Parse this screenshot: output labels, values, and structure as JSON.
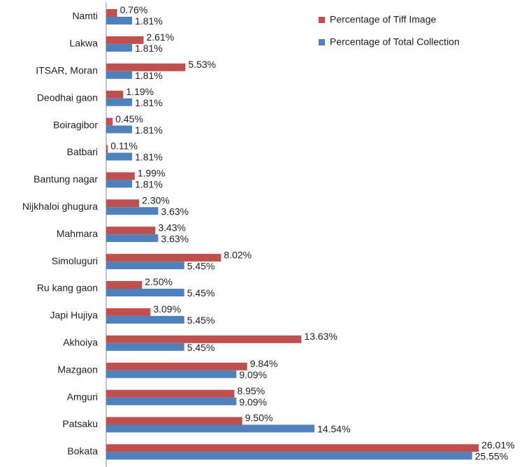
{
  "chart_data": {
    "type": "bar",
    "orientation": "horizontal",
    "categories": [
      "Namti",
      "Lakwa",
      "ITSAR, Moran",
      "Deodhai gaon",
      "Boiragibor",
      "Batbari",
      "Bantung nagar",
      "Nijkhaloi ghugura",
      "Mahmara",
      "Simoluguri",
      "Ru kang gaon",
      "Japi Hujiya",
      "Akhoiya",
      "Mazgaon",
      "Amguri",
      "Patsaku",
      "Bokata"
    ],
    "series": [
      {
        "name": "Percentage of Tiff Image",
        "color": "#c0504d",
        "values": [
          0.76,
          2.61,
          5.53,
          1.19,
          0.45,
          0.11,
          1.99,
          2.3,
          3.43,
          8.02,
          2.5,
          3.09,
          13.63,
          9.84,
          8.95,
          9.5,
          26.01
        ],
        "value_labels": [
          "0.76%",
          "2.61%",
          "5.53%",
          "1.19%",
          "0.45%",
          "0.11%",
          "1.99%",
          "2.30%",
          "3.43%",
          "8.02%",
          "2.50%",
          "3.09%",
          "13.63%",
          "9.84%",
          "8.95%",
          "9.50%",
          "26.01%"
        ]
      },
      {
        "name": "Percentage of Total Collection",
        "color": "#4f81bd",
        "values": [
          1.81,
          1.81,
          1.81,
          1.81,
          1.81,
          1.81,
          1.81,
          3.63,
          3.63,
          5.45,
          5.45,
          5.45,
          5.45,
          9.09,
          9.09,
          14.54,
          25.55
        ],
        "value_labels": [
          "1.81%",
          "1.81%",
          "1.81%",
          "1.81%",
          "1.81%",
          "1.81%",
          "1.81%",
          "3.63%",
          "3.63%",
          "5.45%",
          "5.45%",
          "5.45%",
          "5.45%",
          "9.09%",
          "9.09%",
          "14.54%",
          "25.55%"
        ]
      }
    ],
    "legend": "top-right"
  }
}
